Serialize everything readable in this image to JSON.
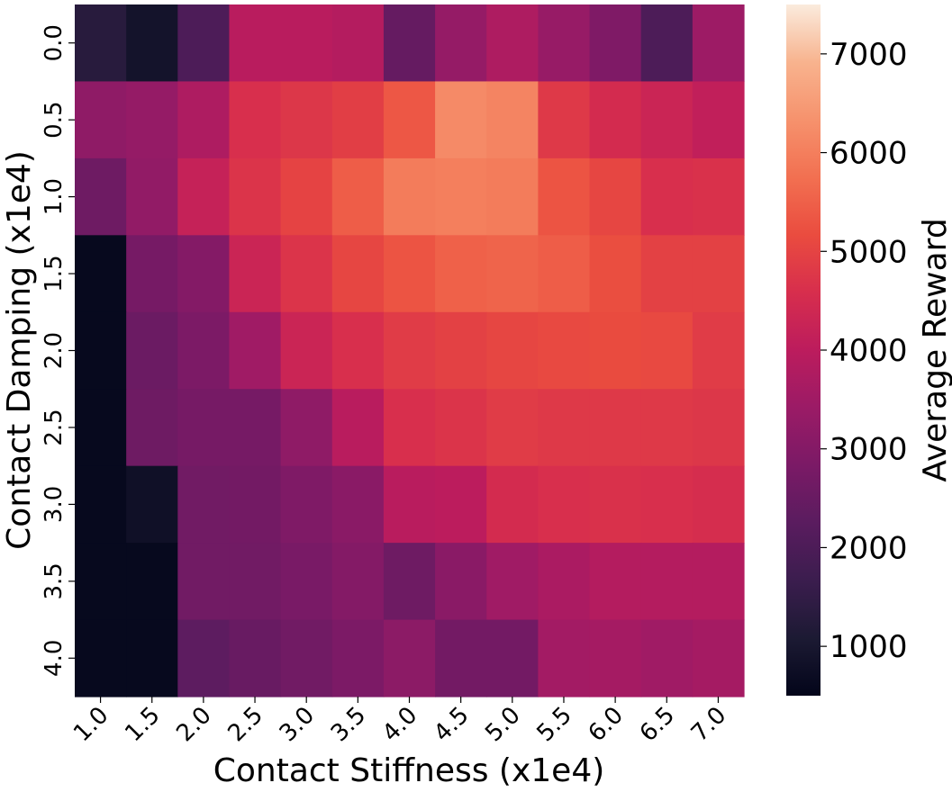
{
  "chart_data": {
    "type": "heatmap",
    "title": "",
    "xlabel": "Contact Stiffness (x1e4)",
    "ylabel": "Contact Damping (x1e4)",
    "x_categories": [
      "1.0",
      "1.5",
      "2.0",
      "2.5",
      "3.0",
      "3.5",
      "4.0",
      "4.5",
      "5.0",
      "5.5",
      "6.0",
      "6.5",
      "7.0"
    ],
    "y_categories": [
      "0.0",
      "0.5",
      "1.0",
      "1.5",
      "2.0",
      "2.5",
      "3.0",
      "3.5",
      "4.0"
    ],
    "values": [
      [
        1300,
        900,
        2000,
        3950,
        3950,
        3850,
        2450,
        3300,
        3750,
        3350,
        2900,
        2000,
        3450
      ],
      [
        3200,
        3300,
        3750,
        4600,
        4750,
        4900,
        5350,
        6200,
        6100,
        4800,
        4500,
        4300,
        4100
      ],
      [
        2600,
        3250,
        4200,
        4700,
        5000,
        5450,
        5950,
        6000,
        5950,
        5300,
        5050,
        4600,
        4650
      ],
      [
        600,
        2750,
        3000,
        4300,
        4700,
        5050,
        5300,
        5500,
        5550,
        5450,
        5200,
        4950,
        4950
      ],
      [
        600,
        2550,
        2850,
        3500,
        4300,
        4600,
        4850,
        4950,
        5050,
        5100,
        5150,
        5100,
        4850
      ],
      [
        600,
        2600,
        2750,
        2750,
        3200,
        3950,
        4600,
        4700,
        4850,
        4800,
        4800,
        4800,
        4750
      ],
      [
        600,
        800,
        2650,
        2700,
        2900,
        3100,
        3950,
        4000,
        4500,
        4600,
        4650,
        4600,
        4550
      ],
      [
        600,
        600,
        2650,
        2650,
        2800,
        3000,
        2600,
        3100,
        3500,
        3700,
        3850,
        3850,
        3850
      ],
      [
        600,
        600,
        2300,
        2500,
        2650,
        2850,
        3150,
        2700,
        2700,
        3550,
        3600,
        3500,
        3600
      ]
    ],
    "colorbar": {
      "label": "Average Reward",
      "vmin": 500,
      "vmax": 7500,
      "ticks": [
        "1000",
        "2000",
        "3000",
        "4000",
        "5000",
        "6000",
        "7000"
      ],
      "colormap": "rocket",
      "colormap_stops": [
        "#03051a",
        "#1c1a33",
        "#3b1d4e",
        "#5a1c5f",
        "#7b1a66",
        "#9b1b66",
        "#bc1c5d",
        "#d72e4d",
        "#ea4c3f",
        "#f27051",
        "#f6926d",
        "#f8b38e",
        "#faebdd"
      ]
    },
    "legend": "colorbar-right",
    "grid": false
  }
}
